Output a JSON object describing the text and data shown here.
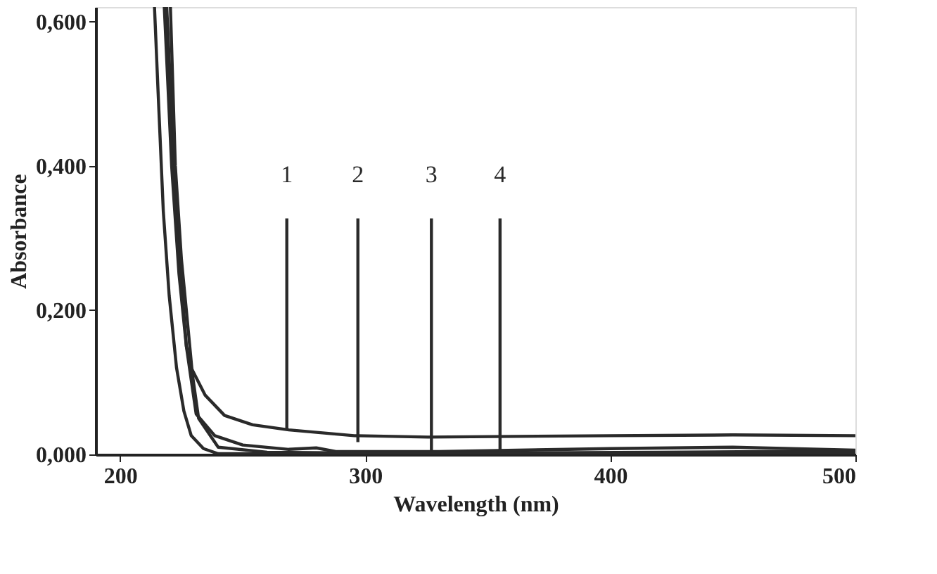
{
  "chart_data": {
    "type": "line",
    "xlabel": "Wavelength (nm)",
    "ylabel": "Absorbance",
    "xlim": [
      190,
      500
    ],
    "ylim": [
      0,
      0.62
    ],
    "xticks": [
      200,
      300,
      400,
      500
    ],
    "yticks": [
      {
        "value": 0,
        "label": "0,000"
      },
      {
        "value": 0.2,
        "label": "0,200"
      },
      {
        "value": 0.4,
        "label": "0,400"
      },
      {
        "value": 0.6,
        "label": "0,600"
      }
    ],
    "grid": false,
    "legend": false,
    "marker": "none",
    "line_style": "solid",
    "series": [
      {
        "color": "#2a2a2a",
        "x": [
          219,
          222,
          225.6,
          227,
          229,
          234.7,
          242.6,
          254,
          268.8,
          295.5,
          325.6,
          400,
          450,
          500
        ],
        "values": [
          0.62,
          0.4,
          0.213,
          0.15,
          0.12,
          0.082,
          0.054,
          0.041,
          0.034,
          0.026,
          0.024,
          0.026,
          0.027,
          0.026
        ]
      },
      {
        "color": "#2a2a2a",
        "x": [
          218,
          221,
          224,
          227,
          231,
          238.6,
          250,
          268.8,
          280,
          288,
          330,
          400,
          450,
          500
        ],
        "values": [
          0.62,
          0.4,
          0.25,
          0.15,
          0.056,
          0.026,
          0.013,
          0.007,
          0.009,
          0.004,
          0.004,
          0.008,
          0.01,
          0.006
        ]
      },
      {
        "color": "#2a2a2a",
        "x": [
          220.5,
          222.5,
          225,
          227,
          229.5,
          232,
          240,
          260,
          300,
          360,
          420,
          500
        ],
        "values": [
          0.62,
          0.4,
          0.27,
          0.2,
          0.11,
          0.05,
          0.01,
          0.003,
          0.002,
          0.002,
          0.003,
          0.005
        ]
      },
      {
        "color": "#2a2a2a",
        "x": [
          214,
          215.5,
          217.6,
          220,
          223,
          226,
          229,
          234,
          240,
          300,
          400,
          500
        ],
        "values": [
          0.62,
          0.5,
          0.337,
          0.22,
          0.12,
          0.06,
          0.026,
          0.008,
          0.001,
          0.001,
          0.001,
          0.001
        ]
      },
      {
        "name": "1",
        "color": "#2a2a2a",
        "x": [
          268,
          268
        ],
        "values": [
          0.035,
          0.327
        ]
      },
      {
        "name": "2",
        "color": "#2a2a2a",
        "x": [
          297,
          297
        ],
        "values": [
          0.017,
          0.327
        ]
      },
      {
        "name": "3",
        "color": "#2a2a2a",
        "x": [
          327,
          327
        ],
        "values": [
          0.005,
          0.327
        ]
      },
      {
        "name": "4",
        "color": "#2a2a2a",
        "x": [
          355,
          355
        ],
        "values": [
          0.003,
          0.327
        ]
      }
    ]
  }
}
